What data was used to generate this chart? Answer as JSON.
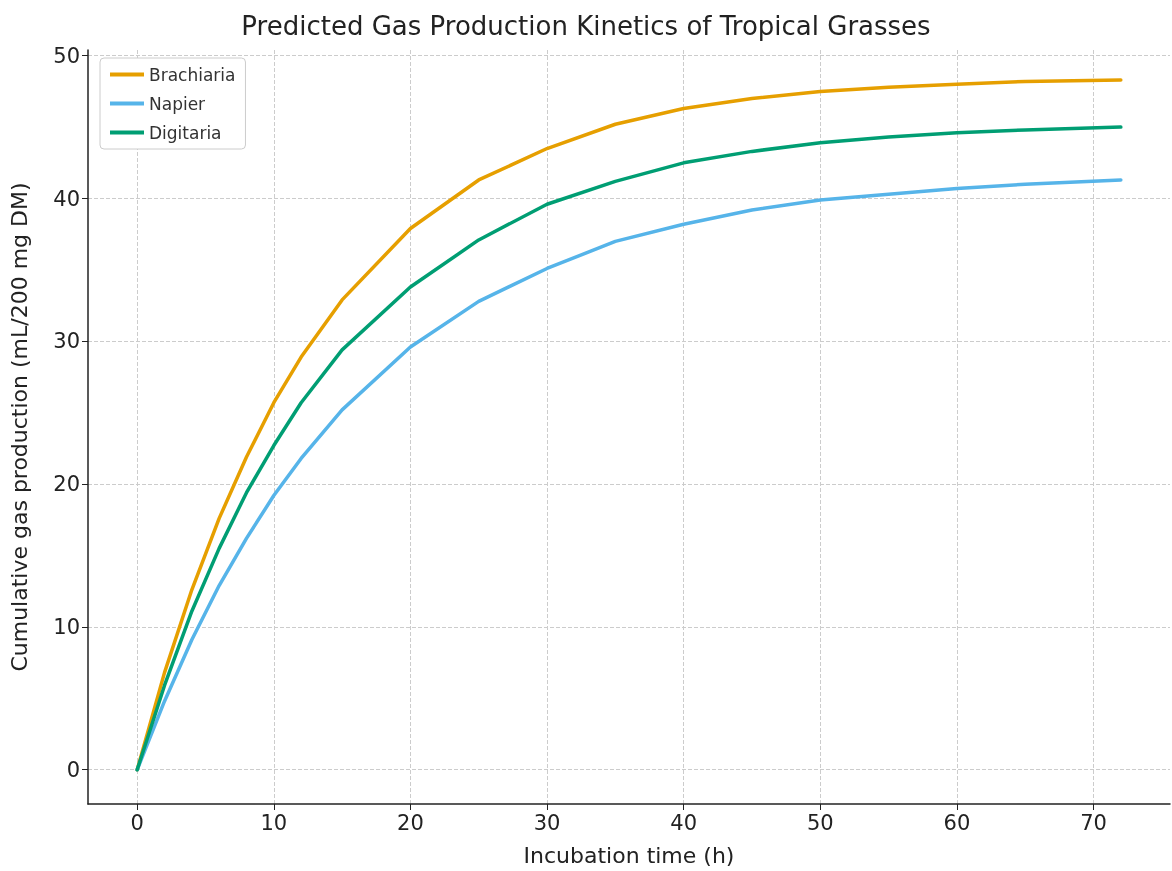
{
  "chart_data": {
    "type": "line",
    "title": "Predicted Gas Production Kinetics of Tropical Grasses",
    "xlabel": "Incubation time (h)",
    "ylabel": "Cumulative gas production (mL/200 mg DM)",
    "x": [
      0,
      2,
      4,
      6,
      8,
      10,
      12,
      15,
      20,
      25,
      30,
      35,
      40,
      45,
      50,
      55,
      60,
      65,
      72
    ],
    "series": [
      {
        "name": "Brachiaria",
        "color": "#e69f00",
        "values": [
          0,
          6.8,
          12.6,
          17.6,
          21.9,
          25.7,
          28.9,
          32.9,
          37.9,
          41.3,
          43.5,
          45.2,
          46.3,
          47.0,
          47.5,
          47.8,
          48.0,
          48.2,
          48.3
        ]
      },
      {
        "name": "Napier",
        "color": "#56b4e9",
        "values": [
          0,
          4.8,
          9.1,
          12.9,
          16.2,
          19.2,
          21.8,
          25.2,
          29.6,
          32.8,
          35.1,
          37.0,
          38.2,
          39.2,
          39.9,
          40.3,
          40.7,
          41.0,
          41.3
        ]
      },
      {
        "name": "Digitaria",
        "color": "#009e73",
        "values": [
          0,
          5.9,
          11.1,
          15.5,
          19.4,
          22.7,
          25.7,
          29.4,
          33.8,
          37.1,
          39.6,
          41.2,
          42.5,
          43.3,
          43.9,
          44.3,
          44.6,
          44.8,
          45.0
        ]
      }
    ],
    "xlim": [
      -3.6,
      75.6
    ],
    "ylim": [
      -2.4,
      50.4
    ],
    "xticks": [
      0,
      10,
      20,
      30,
      40,
      50,
      60,
      70
    ],
    "yticks": [
      0,
      10,
      20,
      30,
      40,
      50
    ],
    "grid": true,
    "legend": "top left",
    "marker": "none",
    "line_style": "solid"
  }
}
